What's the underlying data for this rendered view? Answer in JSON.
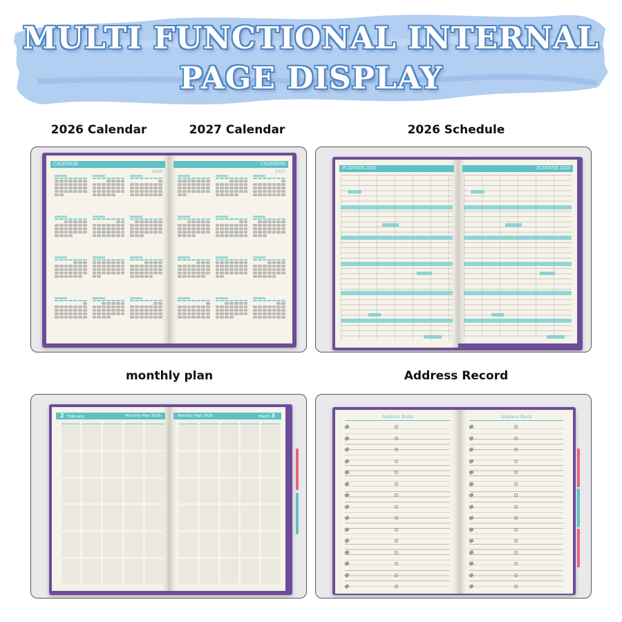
{
  "banner": {
    "line1": "MULTI FUNCTIONAL INTERNAL",
    "line2": "PAGE DISPLAY",
    "brush_color": "#aecbef",
    "text_color": "#ffffff",
    "outline_color": "#4f86c4"
  },
  "captions": {
    "calendar_2026": "2026 Calendar",
    "calendar_2027": "2027 Calendar",
    "schedule_2026": "2026 Schedule",
    "monthly_plan": "monthly plan",
    "address_record": "Address Record"
  },
  "calendar_panel": {
    "left_header": "CALENDAR",
    "left_year": "2026",
    "right_header": "CALENDAR",
    "right_year": "2027"
  },
  "schedule_panel": {
    "left_header": "PLANNER 2026",
    "right_header": "PLANNER 2026"
  },
  "monthly_panel": {
    "left_number": "2",
    "left_month": "February",
    "left_title": "Monthly Plan 2026",
    "right_title": "Monthly Plan 2026",
    "right_month": "March",
    "right_number": "3"
  },
  "address_panel": {
    "left_header": "Address Book",
    "right_header": "Address Book"
  },
  "colors": {
    "accent": "#5fc1c6",
    "cover": "#6d4c99",
    "paper": "#f6f4ea",
    "panel_bg": "#e9e9ec"
  }
}
